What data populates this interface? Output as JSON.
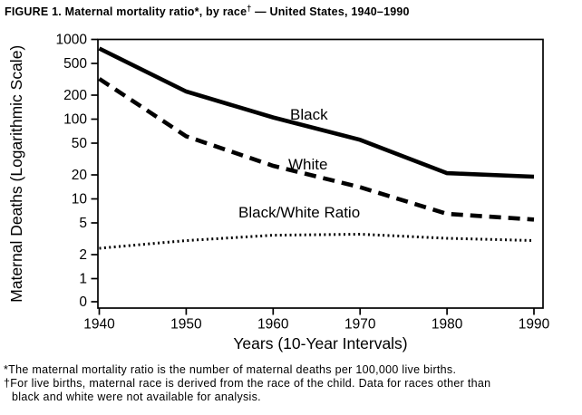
{
  "title": {
    "part1": "FIGURE 1. Maternal mortality ratio",
    "sup1": "*",
    "part2": ", by race",
    "sup2": "†",
    "part3": " — United States, 1940–1990"
  },
  "chart_data": {
    "type": "line",
    "title": "FIGURE 1. Maternal mortality ratio, by race — United States, 1940–1990",
    "xlabel": "Years (10-Year Intervals)",
    "ylabel": "Maternal Deaths (Logarithmic Scale)",
    "yscale": "log",
    "grid": false,
    "legend": "inline-labels",
    "x": [
      1940,
      1950,
      1960,
      1970,
      1980,
      1990
    ],
    "xticks": [
      "1940",
      "1950",
      "1960",
      "1970",
      "1980",
      "1990"
    ],
    "yticks": [
      1000,
      500,
      200,
      100,
      50,
      20,
      10,
      5,
      2,
      1,
      0
    ],
    "ylim": [
      0,
      1000
    ],
    "series": [
      {
        "name": "Black",
        "style": "solid",
        "values": [
          770,
          222,
          105,
          55,
          21,
          19
        ],
        "label_xy": [
          320,
          132
        ]
      },
      {
        "name": "White",
        "style": "dashed",
        "values": [
          320,
          61,
          26,
          14,
          6.5,
          5.5
        ],
        "label_xy": [
          318,
          187
        ]
      },
      {
        "name": "Black/White Ratio",
        "style": "dotted",
        "values": [
          2.4,
          3.0,
          3.5,
          3.6,
          3.2,
          3.0
        ],
        "label_xy": [
          263,
          240
        ]
      }
    ]
  },
  "footnotes": {
    "line1": "*The maternal mortality ratio is the number of maternal deaths per 100,000 live births.",
    "line2": "†For live births, maternal race is derived from the race of the child. Data for races other than",
    "line3": "black and white were not available for analysis."
  },
  "colors": {
    "line": "#000000",
    "background": "#ffffff"
  }
}
